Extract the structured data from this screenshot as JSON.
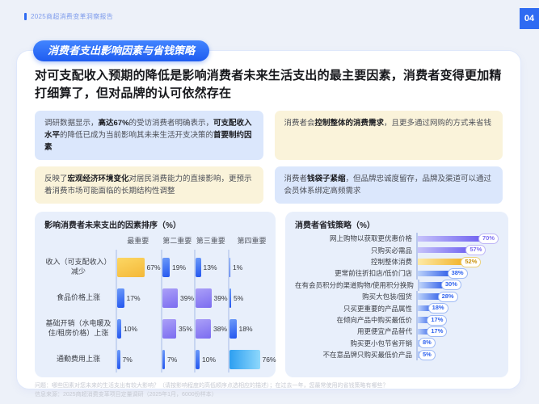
{
  "header": {
    "report_title": "2025商超消费变革洞察报告",
    "page_number": "04"
  },
  "section": {
    "badge": "消费者支出影响因素与省钱策略",
    "headline": "对可支配收入预期的降低是影响消费者未来生活支出的最主要因素，消费者变得更加精打细算了，但对品牌的认可依然存在"
  },
  "insight_boxes": [
    {
      "tone": "blue",
      "segments": [
        [
          "调研数据显示，",
          0
        ],
        [
          "高达67%",
          1
        ],
        [
          "的受访消费者明确表示，",
          0
        ],
        [
          "可支配收入水平",
          1
        ],
        [
          "的降低已成为当前影响其未来生活开支决策的",
          0
        ],
        [
          "首要制约因素",
          1
        ]
      ]
    },
    {
      "tone": "cream",
      "segments": [
        [
          "消费者会",
          0
        ],
        [
          "控制整体的消费需求",
          1
        ],
        [
          "，且更多通过网购的方式来省钱",
          0
        ]
      ]
    },
    {
      "tone": "cream",
      "segments": [
        [
          "反映了",
          0
        ],
        [
          "宏观经济环境变化",
          1
        ],
        [
          "对居民消费能力的直接影响，更预示着消费市场可能面临的长期结构性调整",
          0
        ]
      ]
    },
    {
      "tone": "blue",
      "segments": [
        [
          "消费者",
          0
        ],
        [
          "钱袋子紧缩",
          1
        ],
        [
          "，但品牌忠诚度留存，品牌及渠道可以通过会员体系绑定高频需求",
          0
        ]
      ]
    }
  ],
  "chart_data": [
    {
      "type": "bar",
      "title": "影响消费者未来支出的因素排序（%）",
      "orientation": "horizontal-grouped",
      "group_headers": [
        "最重要",
        "第二重要",
        "第三重要",
        "第四重要"
      ],
      "categories": [
        "收入（可支配收入）减少",
        "食品价格上涨",
        "基础开销（水电暖及住/租房价格）上涨",
        "通勤费用上涨"
      ],
      "series": [
        {
          "name": "最重要",
          "values": [
            67,
            17,
            10,
            7
          ]
        },
        {
          "name": "第二重要",
          "values": [
            19,
            39,
            35,
            7
          ]
        },
        {
          "name": "第三重要",
          "values": [
            13,
            39,
            38,
            10
          ]
        },
        {
          "name": "第四重要",
          "values": [
            1,
            5,
            18,
            76
          ]
        }
      ],
      "cell_colors": [
        [
          "yellow",
          "blue",
          "blue",
          "blue"
        ],
        [
          "blue",
          "purple",
          "purple",
          "blue"
        ],
        [
          "blue",
          "purple",
          "purple",
          "blue"
        ],
        [
          "blue",
          "blue",
          "blue",
          "cyan"
        ]
      ],
      "value_suffix": "%",
      "xlim": [
        0,
        80
      ],
      "grid": false
    },
    {
      "type": "bar",
      "title": "消费者省钱策略（%）",
      "orientation": "horizontal",
      "categories": [
        "网上购物以获取更优惠价格",
        "只购买必需品",
        "控制整体消费",
        "更常前往折扣店/低价门店",
        "在有会员积分的渠道购物/使用积分换购",
        "购买大包装/囤货",
        "只买更重要的产品属性",
        "在倾向产品中购买最低价",
        "用更便宜产品替代",
        "购买更小包节省开销",
        "不在意品牌只购买最低价产品"
      ],
      "values": [
        70,
        57,
        52,
        38,
        30,
        28,
        18,
        17,
        17,
        8,
        5
      ],
      "bar_colors": [
        "purple",
        "purple",
        "yellow",
        "blue",
        "blue",
        "blue",
        "blue",
        "blue",
        "blue",
        "blue",
        "blue"
      ],
      "value_suffix": "%",
      "xlim": [
        0,
        80
      ],
      "grid": false
    }
  ],
  "footer": {
    "question": "问题：哪些因素对您未来的生活支出有较大影响？（请按影响程度的高低顺序点选相应的描述）；在过去一年，您最常使用的省钱策略有哪些？",
    "source": "信息来源：2025商超消费变革项目定量调研（2025年1月，6000份样本）"
  },
  "colors": {
    "accent": "#2e6bf2",
    "panel_bg": "#e8effb",
    "box_blue": "#dbe7fc",
    "box_cream": "#faf3da",
    "bar_blue": "#2356ef",
    "bar_purple": "#7b6cf0",
    "bar_yellow": "#f4b838",
    "bar_cyan": "#2d9ff1"
  }
}
